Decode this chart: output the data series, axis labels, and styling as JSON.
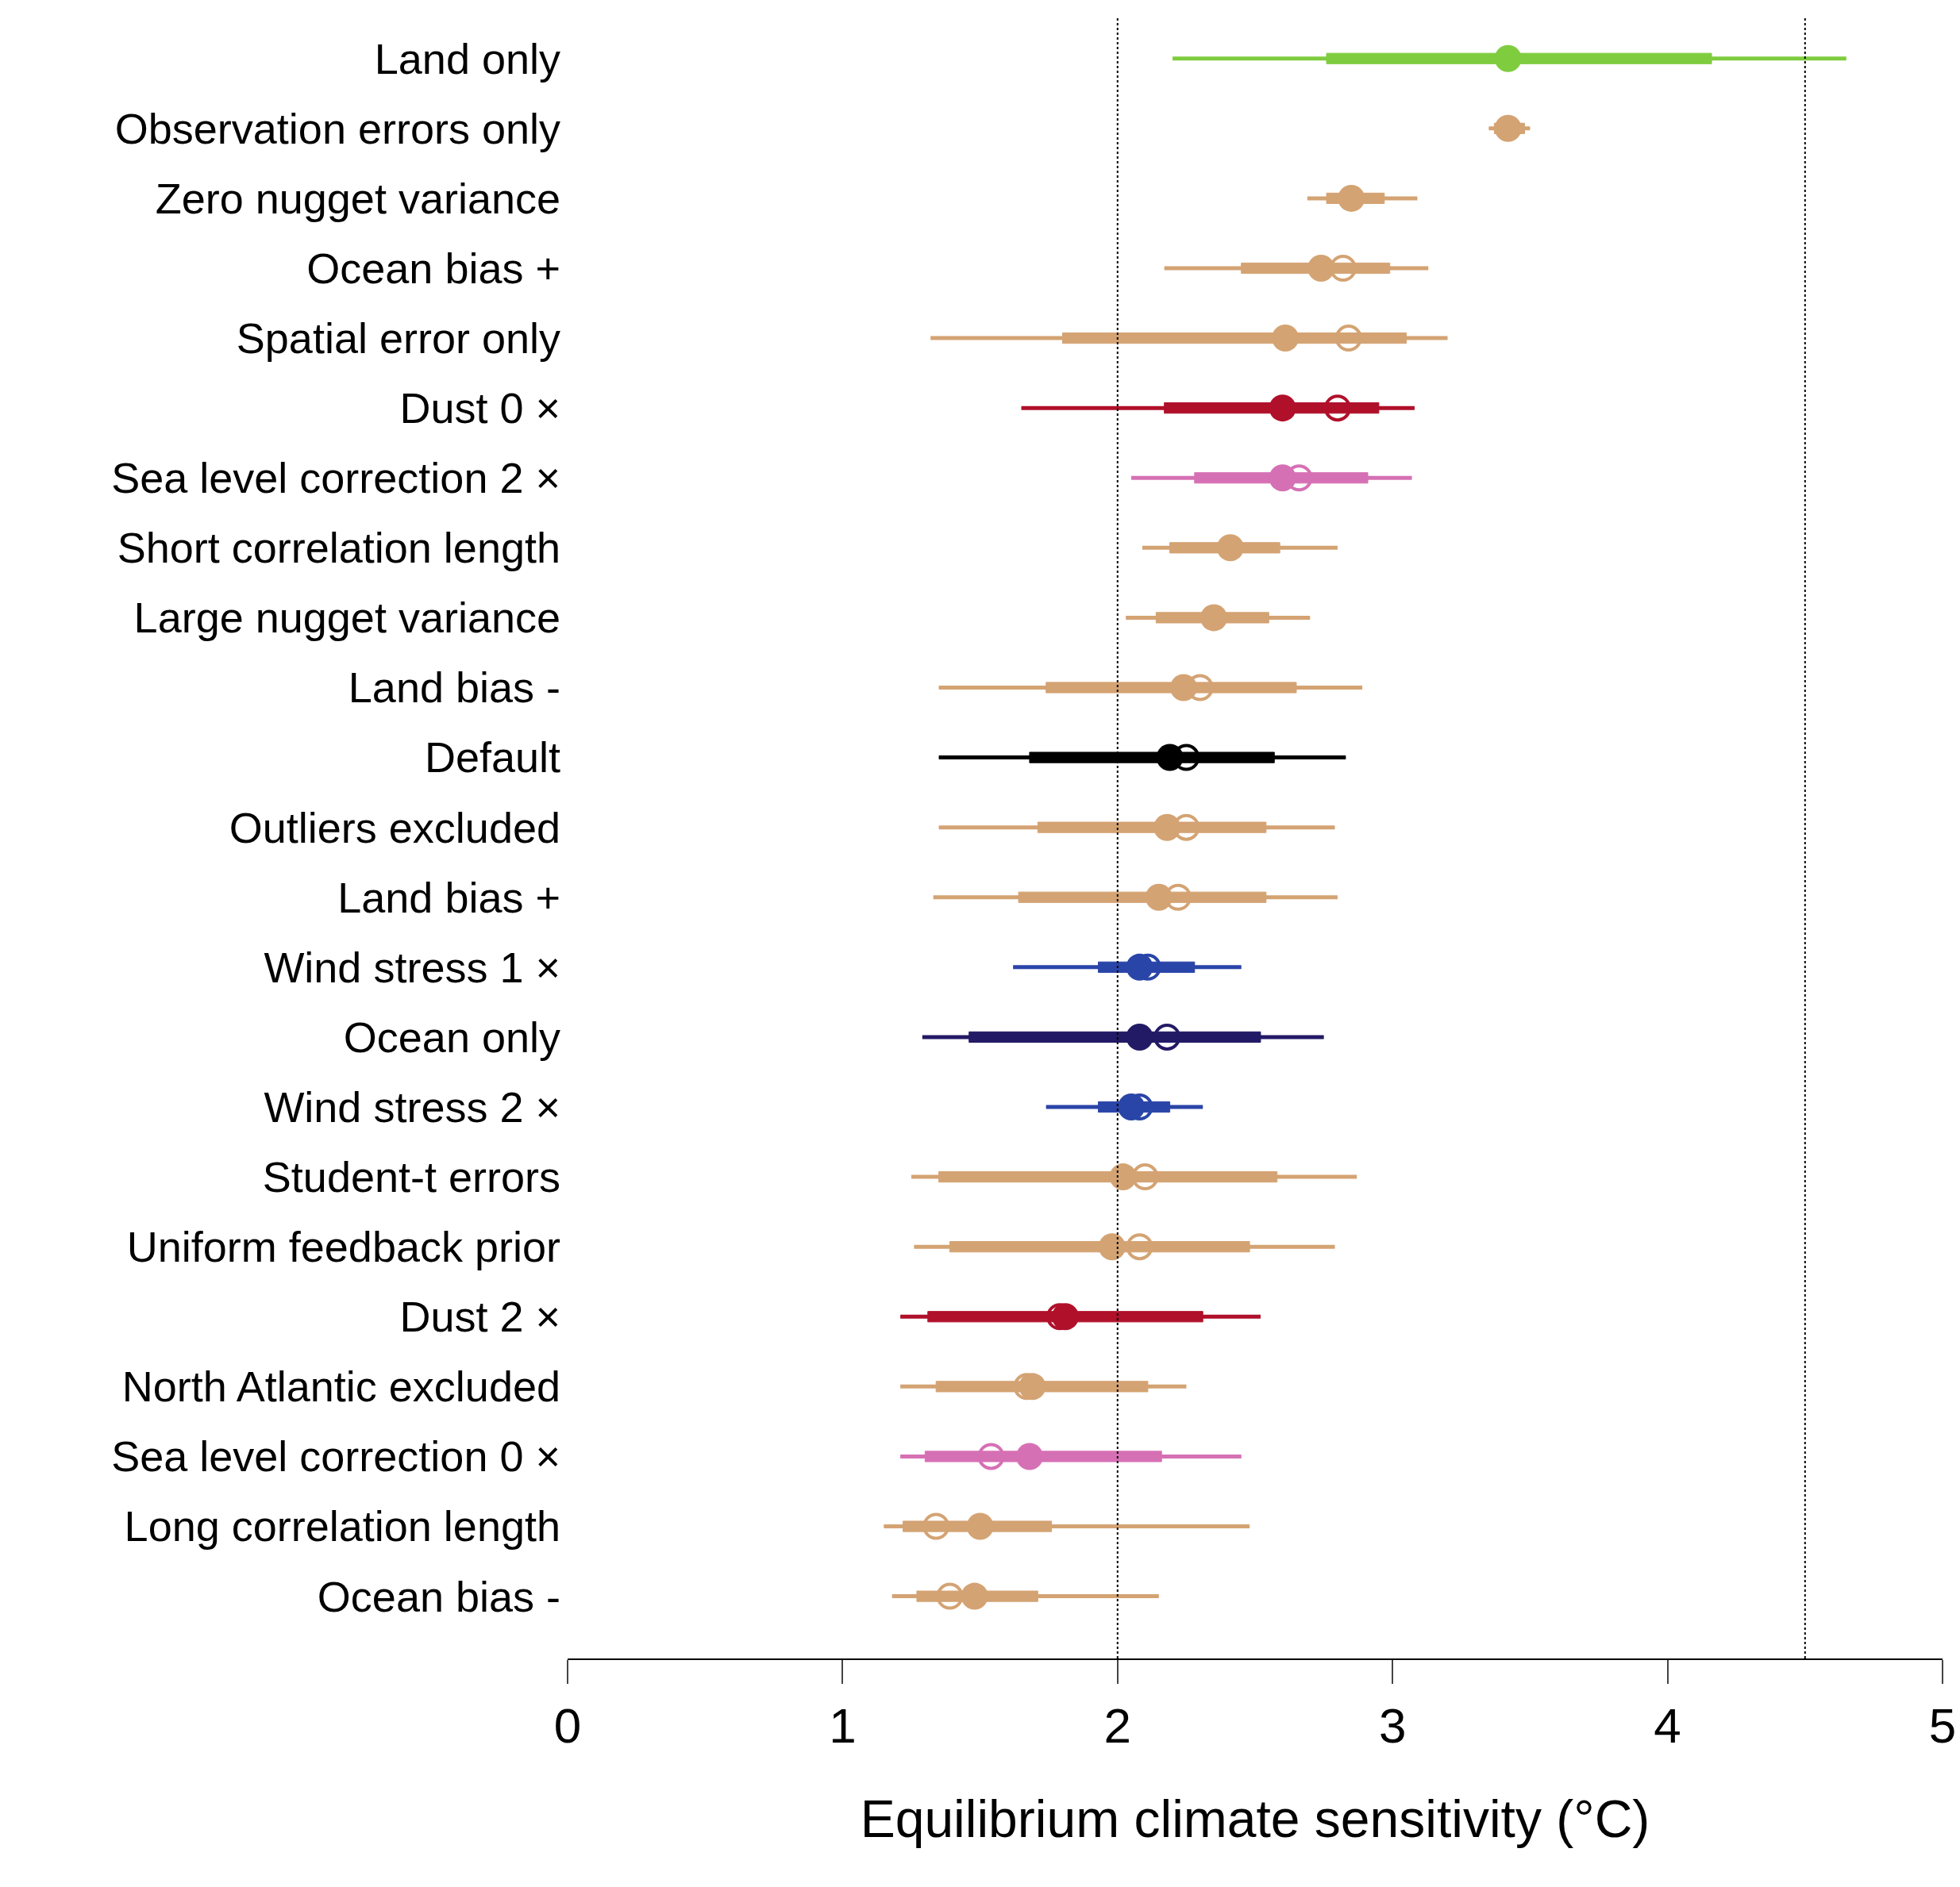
{
  "chart_data": {
    "type": "box",
    "orientation": "horizontal",
    "xlabel": "Equilibrium climate sensitivity (°C)",
    "categories": [
      "Land only",
      "Observation errors only",
      "Zero nugget variance",
      "Ocean bias +",
      "Spatial error only",
      "Dust 0 ×",
      "Sea level correction 2 ×",
      "Short correlation length",
      "Large nugget variance",
      "Land bias -",
      "Default",
      "Outliers excluded",
      "Land bias +",
      "Wind stress 1 ×",
      "Ocean only",
      "Wind stress 2 ×",
      "Student-t errors",
      "Uniform feedback prior",
      "Dust 2 ×",
      "North Atlantic excluded",
      "Sea level correction 0 ×",
      "Long correlation length",
      "Ocean bias -"
    ],
    "colors": [
      "#7fcc3f",
      "#d4a373",
      "#d4a373",
      "#d4a373",
      "#d4a373",
      "#b0102a",
      "#d670b4",
      "#d4a373",
      "#d4a373",
      "#d4a373",
      "#000000",
      "#d4a373",
      "#d4a373",
      "#2a45a8",
      "#231a66",
      "#2a45a8",
      "#d4a373",
      "#d4a373",
      "#b0102a",
      "#d4a373",
      "#d670b4",
      "#d4a373",
      "#d4a373"
    ],
    "boxes": [
      {
        "low": 2.2,
        "q1": 2.76,
        "median": 3.42,
        "q3": 4.16,
        "high": 4.65
      },
      {
        "low": 3.35,
        "q1": 3.37,
        "median": 3.42,
        "q3": 3.48,
        "high": 3.5
      },
      {
        "low": 2.69,
        "q1": 2.76,
        "median": 2.85,
        "q3": 2.97,
        "high": 3.09
      },
      {
        "low": 2.17,
        "q1": 2.45,
        "median": 2.74,
        "q3": 2.99,
        "high": 3.13,
        "mean": 2.82
      },
      {
        "low": 1.32,
        "q1": 1.8,
        "median": 2.61,
        "q3": 3.05,
        "high": 3.2,
        "mean": 2.84
      },
      {
        "low": 1.65,
        "q1": 2.17,
        "median": 2.6,
        "q3": 2.95,
        "high": 3.08,
        "mean": 2.8
      },
      {
        "low": 2.05,
        "q1": 2.28,
        "median": 2.6,
        "q3": 2.91,
        "high": 3.07,
        "mean": 2.66
      },
      {
        "low": 2.09,
        "q1": 2.19,
        "median": 2.41,
        "q3": 2.59,
        "high": 2.8
      },
      {
        "low": 2.03,
        "q1": 2.14,
        "median": 2.35,
        "q3": 2.55,
        "high": 2.7
      },
      {
        "low": 1.35,
        "q1": 1.74,
        "median": 2.24,
        "q3": 2.65,
        "high": 2.89,
        "mean": 2.3
      },
      {
        "low": 1.35,
        "q1": 1.68,
        "median": 2.19,
        "q3": 2.57,
        "high": 2.83,
        "mean": 2.25
      },
      {
        "low": 1.35,
        "q1": 1.71,
        "median": 2.18,
        "q3": 2.54,
        "high": 2.79,
        "mean": 2.25
      },
      {
        "low": 1.33,
        "q1": 1.64,
        "median": 2.15,
        "q3": 2.54,
        "high": 2.8,
        "mean": 2.22
      },
      {
        "low": 1.62,
        "q1": 1.93,
        "median": 2.08,
        "q3": 2.28,
        "high": 2.45,
        "mean": 2.11
      },
      {
        "low": 1.29,
        "q1": 1.46,
        "median": 2.08,
        "q3": 2.52,
        "high": 2.75,
        "mean": 2.18
      },
      {
        "low": 1.74,
        "q1": 1.93,
        "median": 2.05,
        "q3": 2.19,
        "high": 2.31,
        "mean": 2.08
      },
      {
        "low": 1.25,
        "q1": 1.35,
        "median": 2.02,
        "q3": 2.58,
        "high": 2.87,
        "mean": 2.1
      },
      {
        "low": 1.26,
        "q1": 1.39,
        "median": 1.98,
        "q3": 2.48,
        "high": 2.79,
        "mean": 2.08
      },
      {
        "low": 1.21,
        "q1": 1.31,
        "median": 1.81,
        "q3": 2.31,
        "high": 2.52,
        "mean": 1.79
      },
      {
        "low": 1.21,
        "q1": 1.34,
        "median": 1.69,
        "q3": 2.11,
        "high": 2.25,
        "mean": 1.67
      },
      {
        "low": 1.21,
        "q1": 1.3,
        "median": 1.68,
        "q3": 2.16,
        "high": 2.45,
        "mean": 1.54
      },
      {
        "low": 1.15,
        "q1": 1.22,
        "median": 1.5,
        "q3": 1.76,
        "high": 2.48,
        "mean": 1.34
      },
      {
        "low": 1.18,
        "q1": 1.27,
        "median": 1.48,
        "q3": 1.71,
        "high": 2.15,
        "mean": 1.39
      }
    ],
    "series": [
      {
        "type": "scatter",
        "marker": "circle",
        "colors": [
          "#7fcc3f",
          "#d4a373",
          "#d4a373",
          "#d4a373",
          "#d4a373",
          "#b0102a",
          "#d670b4",
          "#d4a373",
          "#d4a373",
          "#d4a373",
          "#000000",
          "#d4a373",
          "#d4a373",
          "#2a45a8",
          "#231a66",
          "#2a45a8",
          "#d4a373",
          "#d4a373",
          "#b0102a",
          "#d4a373",
          "#d670b4",
          "#d4a373",
          "#d4a373"
        ],
        "values": [
          3.42,
          3.42,
          2.85,
          2.74,
          2.61,
          2.6,
          2.6,
          2.41,
          2.35,
          2.24,
          2.19,
          2.18,
          2.15,
          2.08,
          2.08,
          2.05,
          2.02,
          1.98,
          1.81,
          1.69,
          1.68,
          1.5,
          1.48
        ]
      }
    ],
    "xlim": [
      0,
      5
    ],
    "xticks": [
      0,
      1,
      2,
      3,
      4,
      5
    ],
    "ref_lines": [
      {
        "axis": "x",
        "value": 2,
        "line_style": "dotted",
        "color": "#000000"
      },
      {
        "axis": "x",
        "value": 4.5,
        "line_style": "dotted",
        "color": "#000000"
      }
    ]
  }
}
